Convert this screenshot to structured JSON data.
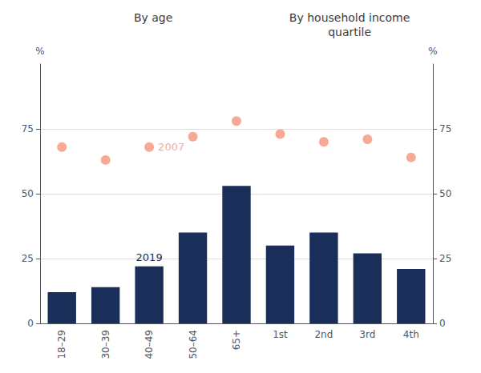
{
  "chart_data": [
    {
      "type": "bar",
      "title": "By age",
      "categories": [
        "18–29",
        "30–39",
        "40–49",
        "50–64",
        "65+"
      ],
      "series": [
        {
          "name": "2019",
          "type": "bar",
          "color": "#1a2e5a",
          "values": [
            12,
            14,
            22,
            35,
            53
          ]
        },
        {
          "name": "2007",
          "type": "scatter",
          "color": "#f4957a",
          "values": [
            68,
            63,
            68,
            72,
            78
          ]
        }
      ],
      "y_label": "%",
      "ylim": [
        0,
        100
      ],
      "yticks": [
        0,
        25,
        50,
        75
      ],
      "grid": true
    },
    {
      "type": "bar",
      "title": "By household income\nquartile",
      "categories": [
        "1st",
        "2nd",
        "3rd",
        "4th"
      ],
      "series": [
        {
          "type": "bar",
          "color": "#1a2e5a",
          "values": [
            30,
            35,
            27,
            21
          ]
        },
        {
          "type": "scatter",
          "color": "#f4957a",
          "values": [
            73,
            70,
            71,
            64
          ]
        }
      ],
      "y_label": "%",
      "ylim": [
        0,
        100
      ],
      "yticks": [
        0,
        25,
        50,
        75
      ],
      "grid": true
    }
  ]
}
